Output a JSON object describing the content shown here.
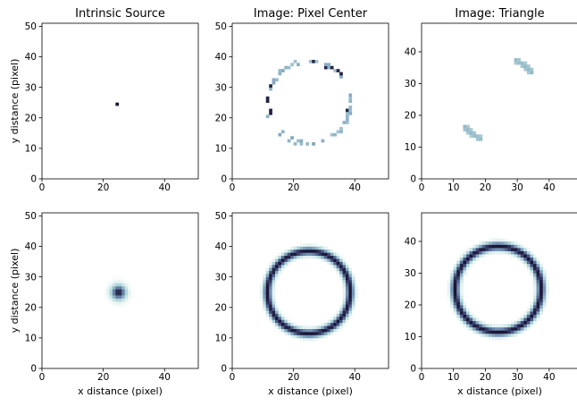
{
  "chart_data": [
    {
      "type": "heatmap",
      "title": "Intrinsic Source",
      "xlabel": "",
      "ylabel": "y distance (pixel)",
      "xlim": [
        0,
        51
      ],
      "ylim": [
        0,
        51
      ],
      "xticks": [
        0,
        20,
        40
      ],
      "yticks": [
        0,
        10,
        20,
        30,
        40,
        50
      ],
      "kind": "point",
      "center": [
        25,
        25
      ],
      "intensity": 1.0
    },
    {
      "type": "heatmap",
      "title": "Image: Pixel Center",
      "xlabel": "",
      "ylabel": "",
      "xlim": [
        0,
        51
      ],
      "ylim": [
        0,
        51
      ],
      "xticks": [
        0,
        20,
        40
      ],
      "yticks": [
        0,
        10,
        20,
        30,
        40,
        50
      ],
      "kind": "sparse_ring",
      "center": [
        25,
        25
      ],
      "radius": 13.5
    },
    {
      "type": "heatmap",
      "title": "Image: Triangle",
      "xlabel": "",
      "ylabel": "",
      "xlim": [
        0,
        49
      ],
      "ylim": [
        0,
        49
      ],
      "xticks": [
        0,
        10,
        20,
        30,
        40
      ],
      "yticks": [
        0,
        10,
        20,
        30,
        40
      ],
      "kind": "arcs",
      "center": [
        24,
        25
      ],
      "radius": 13.5,
      "arcs_deg": [
        [
          38,
          68
        ],
        [
          218,
          248
        ]
      ]
    },
    {
      "type": "heatmap",
      "title": "",
      "xlabel": "x distance (pixel)",
      "ylabel": "y distance (pixel)",
      "xlim": [
        0,
        51
      ],
      "ylim": [
        0,
        51
      ],
      "xticks": [
        0,
        20,
        40
      ],
      "yticks": [
        0,
        10,
        20,
        30,
        40,
        50
      ],
      "kind": "blob",
      "center": [
        25,
        25
      ],
      "sigma": 1.6
    },
    {
      "type": "heatmap",
      "title": "",
      "xlabel": "x distance (pixel)",
      "ylabel": "",
      "xlim": [
        0,
        51
      ],
      "ylim": [
        0,
        51
      ],
      "xticks": [
        0,
        20,
        40
      ],
      "yticks": [
        0,
        10,
        20,
        30,
        40,
        50
      ],
      "kind": "ring",
      "center": [
        25,
        25
      ],
      "radius": 13.5,
      "width": 0.9
    },
    {
      "type": "heatmap",
      "title": "",
      "xlabel": "x distance (pixel)",
      "ylabel": "",
      "xlim": [
        0,
        49
      ],
      "ylim": [
        0,
        49
      ],
      "xticks": [
        0,
        10,
        20,
        30,
        40
      ],
      "yticks": [
        0,
        10,
        20,
        30,
        40
      ],
      "kind": "ring",
      "center": [
        24,
        25
      ],
      "radius": 13.5,
      "width": 0.9
    }
  ],
  "colormap": [
    "#ffffff",
    "#b8dcdc",
    "#7c9fbc",
    "#4a5a8a",
    "#1b1535"
  ]
}
